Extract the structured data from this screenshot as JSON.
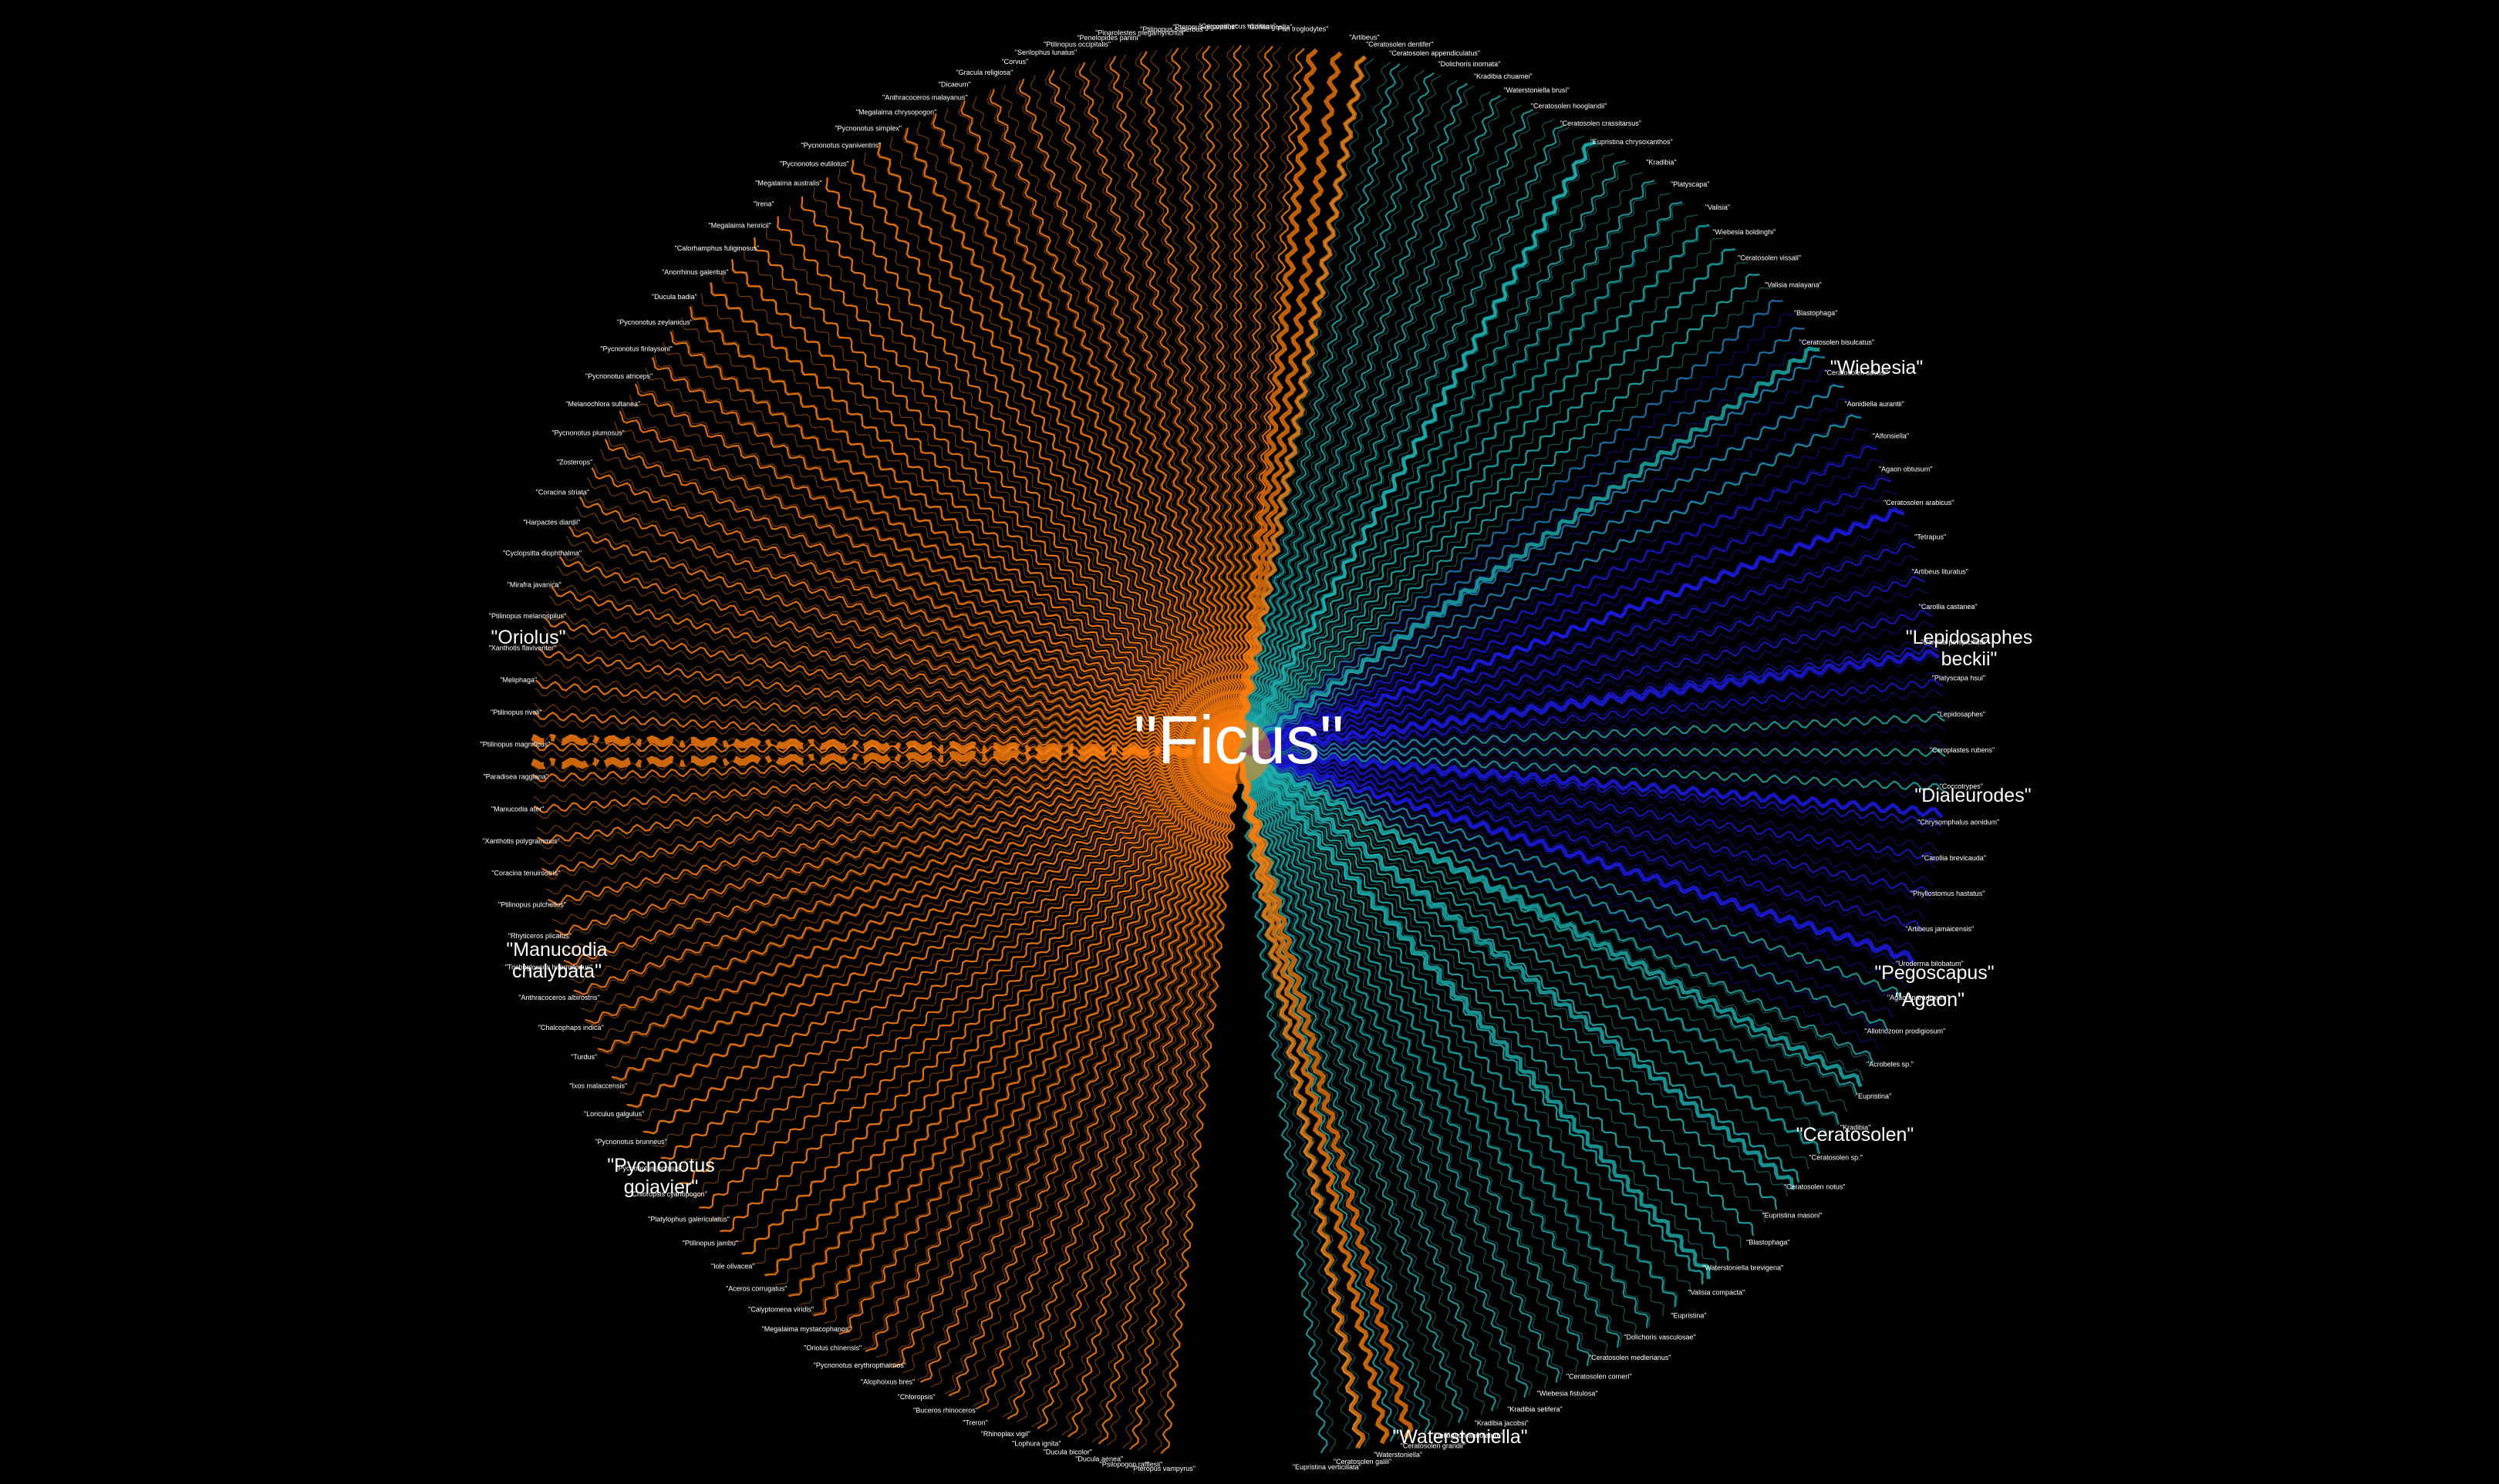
{
  "center": {
    "label": "\"Ficus\"",
    "color": "#ff7f0e"
  },
  "edge_colors": {
    "pollinator": "#ff7f0e",
    "wasp": "#1fb2b2",
    "pest": "#1a1ad9"
  },
  "highlighted_nodes": [
    {
      "label": "\"Oriolus\"",
      "group": "pollinator"
    },
    {
      "label": "\"Manucodia chalybata\"",
      "group": "pollinator"
    },
    {
      "label": "\"Pycnonotus goiavier\"",
      "group": "pollinator"
    },
    {
      "label": "\"Waterstoniella\"",
      "group": "wasp"
    },
    {
      "label": "\"Ceratosolen\"",
      "group": "wasp"
    },
    {
      "label": "\"Pegoscapus\"",
      "group": "wasp"
    },
    {
      "label": "\"Agaon\"",
      "group": "wasp"
    },
    {
      "label": "\"Dialeurodes\"",
      "group": "pest"
    },
    {
      "label": "\"Lepidosaphes beckii\"",
      "group": "pest"
    },
    {
      "label": "\"Wiebesia\"",
      "group": "wasp"
    }
  ],
  "left_nodes": [
    "\"Pan troglodytes\"",
    "\"Gorilla gorilla\"",
    "\"Cercopithecus nictitans\"",
    "\"Pteropus giganteus\"",
    "\"Ptilinopus superbus\"",
    "\"Pinarolestes megarhynchus\"",
    "\"Penelopides panini\"",
    "\"Ptilinopus occipitalis\"",
    "\"Serilophus lunatus\"",
    "\"Corvus\"",
    "\"Gracula religiosa\"",
    "\"Dicaeum\"",
    "\"Anthracoceros malayanus\"",
    "\"Megalaima chrysopogon\"",
    "\"Pycnonotus simplex\"",
    "\"Pycnonotus cyaniventris\"",
    "\"Pycnonotus eutilotus\"",
    "\"Megalaima australis\"",
    "\"Irena\"",
    "\"Megalaima henricii\"",
    "\"Calorhamphus fuliginosus\"",
    "\"Anorrhinus galeritus\"",
    "\"Ducula badia\"",
    "\"Pycnonotus zeylanicus\"",
    "\"Pycnonotus finlaysoni\"",
    "\"Pycnonotus atriceps\"",
    "\"Melanochlora sultanea\"",
    "\"Pycnonotus plumosus\"",
    "\"Zosterops\"",
    "\"Coracina striata\"",
    "\"Harpactes diardii\"",
    "\"Cyclopsitta diophthalma\"",
    "\"Mirafra javanica\"",
    "\"Ptilinopus melanospilus\"",
    "\"Xanthotis flaviventer\"",
    "\"Meliphaga\"",
    "\"Ptilinopus rivoli\"",
    "\"Ptilinopus magnificus\"",
    "\"Paradisea raggiana\"",
    "\"Manucodia ater\"",
    "\"Xanthotis polygrammus\"",
    "\"Coracina tenuirostris\"",
    "\"Ptilinopus pulchellus\"",
    "\"Rhyticeros plicatus\"",
    "\"Trichoglossus haematodus\"",
    "\"Anthracoceros albirostris\"",
    "\"Chalcophaps indica\"",
    "\"Turdus\"",
    "\"Ixos malaccensis\"",
    "\"Loriculus galgulus\"",
    "\"Pycnonotus brunneus\"",
    "\"Pycnonotus jocosus\"",
    "\"Chloropsis cyanopogon\"",
    "\"Platylophus galericulatus\"",
    "\"Ptilinopus jambu\"",
    "\"Iole olivacea\"",
    "\"Aceros corrugatus\"",
    "\"Calyptomena viridis\"",
    "\"Megalaima mystacophanos\"",
    "\"Oriolus chinensis\"",
    "\"Pycnonotus erythropthalmos\"",
    "\"Alophoixus bres\"",
    "\"Chloropsis\"",
    "\"Buceros rhinoceros\"",
    "\"Treron\"",
    "\"Rhinoplax vigil\"",
    "\"Lophura ignita\"",
    "\"Ducula bicolor\"",
    "\"Ducula aenea\"",
    "\"Psilopogon rafflesii\"",
    "\"Pteropus vampyrus\""
  ],
  "right_nodes": [
    "\"Artibeus\"",
    "\"Ceratosolen dentifer\"",
    "\"Ceratosolen appendiculatus\"",
    "\"Dolichoris inornata\"",
    "\"Kradibia chuamei\"",
    "\"Waterstoniella brusi\"",
    "\"Ceratosolen hooglandii\"",
    "\"Ceratosolen crassitarsus\"",
    "\"Eupristina chrysoxanthos\"",
    "\"Kradibia\"",
    "\"Platyscapa\"",
    "\"Valisia\"",
    "\"Wiebesia boldinghi\"",
    "\"Ceratosolen vissali\"",
    "\"Valisia malayana\"",
    "\"Blastophaga\"",
    "\"Ceratosolen bisulcatus\"",
    "\"Ceratosolen solmsi\"",
    "\"Aonidiella aurantii\"",
    "\"Alfonsiella\"",
    "\"Agaon obtusum\"",
    "\"Ceratosolen arabicus\"",
    "\"Tetrapus\"",
    "\"Artibeus lituratus\"",
    "\"Carollia castanea\"",
    "\"Carollia perspicillata\"",
    "\"Platyscapa hsui\"",
    "\"Lepidosaphes\"",
    "\"Ceroplastes rubens\"",
    "\"Coccotrypes\"",
    "\"Chrysomphalus aonidum\"",
    "\"Carollia brevicauda\"",
    "\"Phyllostomus hastatus\"",
    "\"Artibeus jamaicensis\"",
    "\"Uroderma bilobatum\"",
    "\"Agaon paradoxum\"",
    "\"Allotriozoon prodigiosum\"",
    "\"Acrobeles sp.\"",
    "\"Eupristina\"",
    "\"Kradibia\"",
    "\"Ceratosolen sp.\"",
    "\"Ceratosolen notus\"",
    "\"Eupristina masoni\"",
    "\"Blastophaga\"",
    "\"Waterstoniella brevigena\"",
    "\"Valisia compacta\"",
    "\"Eupristina\"",
    "\"Dolichoris vasculosae\"",
    "\"Ceratosolen medlerianus\"",
    "\"Ceratosolen corneri\"",
    "\"Wiebesia fistulosa\"",
    "\"Kradibia setifera\"",
    "\"Kradibia jacobsi\"",
    "\"Deilagaon annulatum\"",
    "\"Ceratosolen grandii\"",
    "\"Waterstoniella\"",
    "\"Ceratosolen galili\"",
    "\"Eupristina verticillata\""
  ]
}
